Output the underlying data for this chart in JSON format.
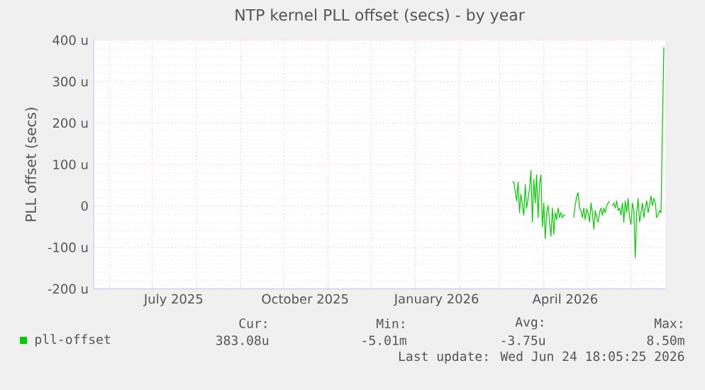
{
  "chart_data": {
    "type": "line",
    "title": "NTP kernel PLL offset (secs) - by year",
    "ylabel": "PLL offset (secs)",
    "xlim": [
      "2025-05-21",
      "2026-06-25"
    ],
    "ylim": [
      -200,
      400
    ],
    "xticks": [
      {
        "value": "2025-06-01",
        "label": null
      },
      {
        "value": "2025-07-01",
        "label": null
      },
      {
        "value": "2025-08-01",
        "label": null
      },
      {
        "value": "2025-09-01",
        "label": null
      },
      {
        "value": "2025-10-01",
        "label": null
      },
      {
        "value": "2025-11-01",
        "label": null
      },
      {
        "value": "2025-12-01",
        "label": null
      },
      {
        "value": "2026-01-01",
        "label": null
      },
      {
        "value": "2026-02-01",
        "label": null
      },
      {
        "value": "2026-03-01",
        "label": null
      },
      {
        "value": "2026-04-01",
        "label": null
      },
      {
        "value": "2026-05-01",
        "label": null
      },
      {
        "value": "2026-06-01",
        "label": null
      },
      {
        "value": "2025-07-16",
        "label": "July 2025"
      },
      {
        "value": "2025-10-16",
        "label": "October 2025"
      },
      {
        "value": "2026-01-16",
        "label": "January 2026"
      },
      {
        "value": "2026-04-16",
        "label": "April 2026"
      }
    ],
    "yticks": [
      {
        "value": -200,
        "label": "-200 u"
      },
      {
        "value": -100,
        "label": "-100 u"
      },
      0,
      {
        "value": 100,
        "label": "100 u"
      },
      {
        "value": 200,
        "label": "200 u"
      },
      {
        "value": 300,
        "label": "300 u"
      },
      {
        "value": 400,
        "label": "400 u"
      }
    ],
    "grid": true,
    "legend": "bottom",
    "series": [
      {
        "name": "pll-offset",
        "color": "#00cc00",
        "x": [
          "2026-03-10",
          "2026-03-11",
          "2026-03-13",
          "2026-03-14",
          "2026-03-15",
          "2026-03-16",
          "2026-03-18",
          "2026-03-19",
          "2026-03-20",
          "2026-03-22",
          "2026-03-23",
          "2026-03-24",
          "2026-03-25",
          "2026-03-26",
          "2026-03-27",
          "2026-03-28",
          "2026-03-29",
          "2026-03-30",
          "2026-03-31",
          "2026-04-01",
          "2026-04-02",
          "2026-04-03",
          "2026-04-04",
          "2026-04-05",
          "2026-04-06",
          "2026-04-07",
          "2026-04-08",
          "2026-04-09",
          "2026-04-10",
          "2026-04-11",
          "2026-04-12",
          "2026-04-13",
          "2026-04-14",
          "2026-04-15",
          "2026-04-16",
          "2026-04-19",
          "2026-04-22",
          "2026-04-23",
          "2026-04-24",
          "2026-04-25",
          "2026-04-26",
          "2026-04-27",
          "2026-04-28",
          "2026-04-29",
          "2026-04-30",
          "2026-05-01",
          "2026-05-02",
          "2026-05-03",
          "2026-05-04",
          "2026-05-05",
          "2026-05-06",
          "2026-05-07",
          "2026-05-08",
          "2026-05-09",
          "2026-05-10",
          "2026-05-11",
          "2026-05-12",
          "2026-05-13",
          "2026-05-14",
          "2026-05-15",
          "2026-05-16",
          "2026-05-17",
          "2026-05-18",
          "2026-05-19",
          "2026-05-20",
          "2026-05-21",
          "2026-05-22",
          "2026-05-23",
          "2026-05-24",
          "2026-05-25",
          "2026-05-26",
          "2026-05-27",
          "2026-05-28",
          "2026-05-29",
          "2026-05-30",
          "2026-05-31",
          "2026-06-01",
          "2026-06-02",
          "2026-06-03",
          "2026-06-04",
          "2026-06-05",
          "2026-06-06",
          "2026-06-07",
          "2026-06-08",
          "2026-06-09",
          "2026-06-10",
          "2026-06-11",
          "2026-06-12",
          "2026-06-13",
          "2026-06-14",
          "2026-06-15",
          "2026-06-16",
          "2026-06-17",
          "2026-06-18",
          "2026-06-19",
          "2026-06-20",
          "2026-06-21",
          "2026-06-22",
          "2026-06-24"
        ],
        "values": [
          58,
          58,
          12,
          58,
          -16,
          29,
          -22,
          52,
          -5,
          41,
          86,
          -39,
          64,
          7,
          75,
          -28,
          52,
          75,
          -50,
          7,
          -79,
          -16,
          1,
          -39,
          -73,
          -5,
          -68,
          -16,
          -33,
          -5,
          -28,
          -16,
          -28,
          -22,
          -22,
          null,
          -28,
          1,
          24,
          32,
          -5,
          -11,
          -28,
          -5,
          -33,
          -7,
          -16,
          -39,
          7,
          -16,
          -56,
          -11,
          -28,
          -39,
          -16,
          -5,
          -22,
          -5,
          -16,
          1,
          7,
          12,
          null,
          1,
          7,
          -5,
          12,
          -11,
          -5,
          -22,
          7,
          -39,
          12,
          -16,
          18,
          -28,
          -45,
          7,
          -11,
          -125,
          -16,
          18,
          -39,
          -16,
          7,
          -28,
          -5,
          12,
          -16,
          1,
          24,
          1,
          18,
          7,
          -28,
          -22,
          -11,
          -16,
          383
        ]
      }
    ],
    "annotations": [
      "Cur:",
      "383.08u",
      "Min:",
      "-5.01m",
      "Avg:",
      "-3.75u",
      "Max:",
      "8.50m",
      "Last update: Wed Jun 24 18:05:25 2026"
    ]
  }
}
